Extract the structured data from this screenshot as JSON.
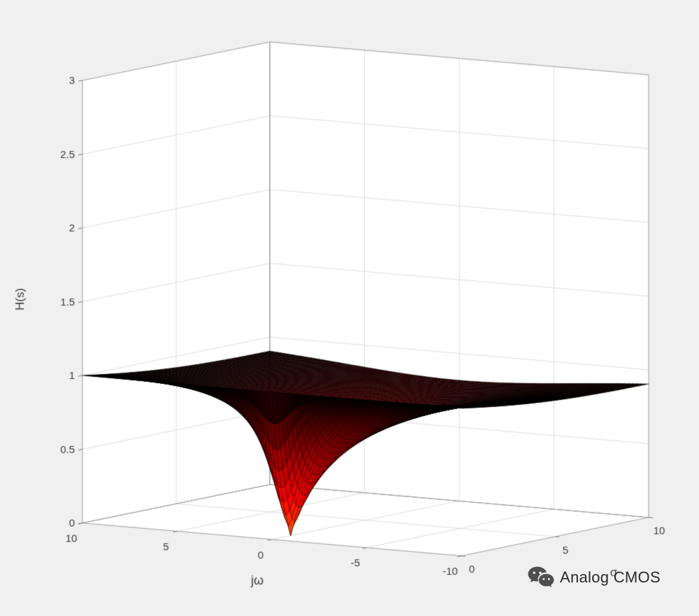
{
  "figure": {
    "background_color": "#f0f0f0",
    "wall_color": "#ffffff"
  },
  "watermark": {
    "text": "Analog CMOS",
    "icon": "wechat-logo"
  },
  "chart_data": {
    "type": "surface",
    "title": "",
    "xlabel": "jω",
    "ylabel": "σ",
    "zlabel": "H(s)",
    "xlim": [
      -10,
      10
    ],
    "ylim": [
      0,
      10
    ],
    "zlim": [
      0,
      3
    ],
    "x_axis_direction": "reversed (+10 at left, -10 at front corner)",
    "x_ticks": [
      10,
      5,
      0,
      -5,
      -10
    ],
    "y_ticks": [
      0,
      5,
      10
    ],
    "z_ticks": [
      0,
      0.5,
      1,
      1.5,
      2,
      2.5,
      3
    ],
    "view": {
      "azimuth_deg": -37.5,
      "elevation_deg": 30
    },
    "grid": "on",
    "surface": {
      "description": "Magnitude of a first-order all-pass transfer function over the s-plane: flat sheet near H=1 far from the zero, exactly 1 along the jω axis (σ=0 edge), with a sharp conical funnel dipping to 0 at the right-half-plane zero.",
      "formula": "H(s) = |(s - 1)/(s + 1)|,  s = σ + jω",
      "zero": {
        "sigma": 1,
        "omega": 0
      },
      "value_at_zero": 0,
      "asymptotic_value": 1,
      "grid_points": {
        "omega": 101,
        "sigma": 81
      }
    },
    "colormap": {
      "name": "hot-reversed",
      "high_value_color": "#000000",
      "mid_value_color": "#b32000",
      "low_value_color": "#ff7a00",
      "mesh_line_color": "#000000"
    },
    "grid_color": "#dedede",
    "box_edge_color": "#a6a6a6",
    "tick_mark_color": "#777777",
    "tick_label_color": "#3c3c3c",
    "wall_color": "#ffffff"
  }
}
